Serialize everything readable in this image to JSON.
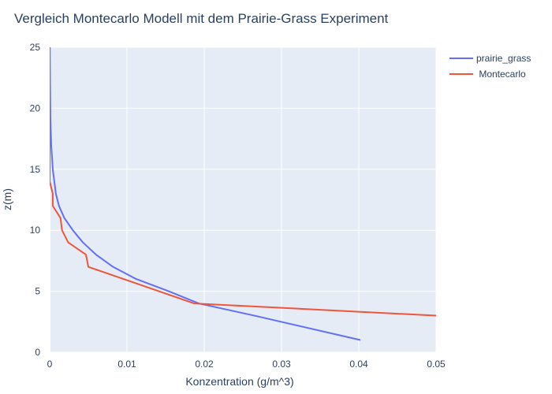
{
  "chart_data": {
    "type": "line",
    "title": "Vergleich Montecarlo Modell mit dem Prairie-Grass Experiment",
    "xlabel": "Konzentration (g/m^3)",
    "ylabel": "z(m)",
    "xlim": [
      0,
      0.05
    ],
    "ylim": [
      0,
      25
    ],
    "xticks": [
      0,
      0.01,
      0.02,
      0.03,
      0.04,
      0.05
    ],
    "xtick_labels": [
      "0",
      "0.01",
      "0.02",
      "0.03",
      "0.04",
      "0.05"
    ],
    "yticks": [
      0,
      5,
      10,
      15,
      20,
      25
    ],
    "ytick_labels": [
      "0",
      "5",
      "10",
      "15",
      "20",
      "25"
    ],
    "grid": true,
    "legend_position": "top-right",
    "series": [
      {
        "name": "prairie_grass",
        "color": "#636efa",
        "points": [
          [
            0.0402,
            1
          ],
          [
            0.0265,
            3
          ],
          [
            0.0193,
            4
          ],
          [
            0.0154,
            5
          ],
          [
            0.0112,
            6
          ],
          [
            0.0082,
            7
          ],
          [
            0.006,
            8
          ],
          [
            0.0043,
            9
          ],
          [
            0.003,
            10
          ],
          [
            0.0019,
            11
          ],
          [
            0.0012,
            12
          ],
          [
            0.0008,
            13
          ],
          [
            0.0006,
            14
          ],
          [
            0.0004,
            15
          ],
          [
            0.0003,
            16
          ],
          [
            0.0002,
            17
          ],
          [
            0.00015,
            18
          ],
          [
            0.0001,
            19
          ],
          [
            8e-05,
            20
          ],
          [
            5e-05,
            22
          ],
          [
            3e-05,
            24
          ],
          [
            2e-05,
            25
          ]
        ]
      },
      {
        "name": " Montecarlo",
        "color": "#ef553b",
        "points": [
          [
            0.05,
            3
          ],
          [
            0.0187,
            4
          ],
          [
            0.005,
            7
          ],
          [
            0.0047,
            8
          ],
          [
            0.0024,
            9
          ],
          [
            0.0016,
            10
          ],
          [
            0.0014,
            11
          ],
          [
            0.0004,
            12
          ],
          [
            0.0004,
            13
          ],
          [
            0.0,
            14
          ],
          [
            0.0,
            25
          ]
        ]
      }
    ]
  }
}
